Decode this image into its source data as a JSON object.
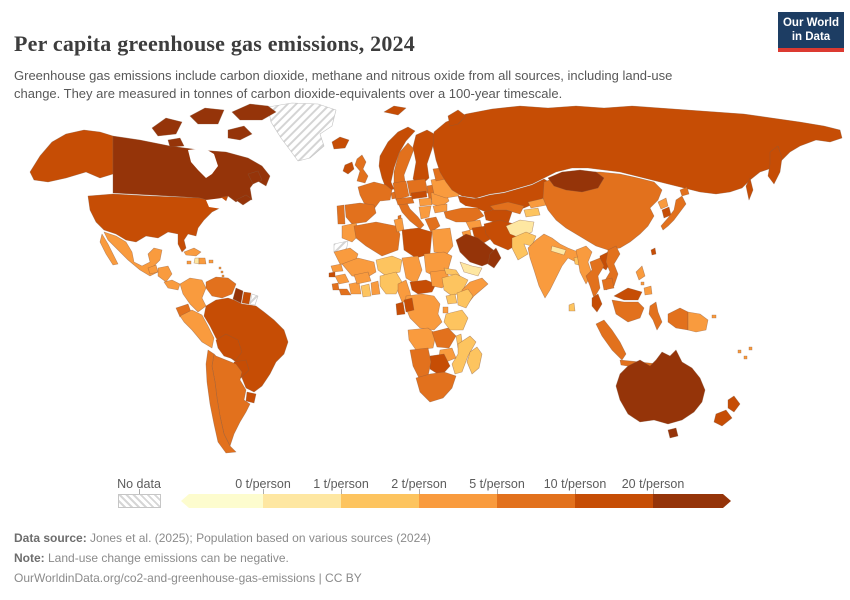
{
  "header": {
    "title": "Per capita greenhouse gas emissions, 2024",
    "subtitle": "Greenhouse gas emissions include carbon dioxide, methane and nitrous oxide from all sources, including land-use change. They are measured in tonnes of carbon dioxide-equivalents over a 100-year timescale."
  },
  "logo": {
    "line1": "Our World",
    "line2": "in Data"
  },
  "footer": {
    "source_label": "Data source:",
    "source_text": " Jones et al. (2025); Population based on various sources (2024)",
    "note_label": "Note:",
    "note_text": " Land-use change emissions can be negative.",
    "url_text": "OurWorldinData.org/co2-and-greenhouse-gas-emissions | CC BY"
  },
  "chart_data": {
    "type": "choropleth_map",
    "title": "Per capita greenhouse gas emissions, 2024",
    "unit": "tonnes of CO2-equivalents per person",
    "year": 2024,
    "legend_position": "bottom",
    "no_data_label": "No data",
    "threshold_labels": [
      "0 t/person",
      "1 t/person",
      "2 t/person",
      "5 t/person",
      "10 t/person",
      "20 t/person"
    ],
    "bins": [
      "below 0",
      "0-1",
      "1-2",
      "2-5",
      "5-10",
      "10-20",
      "above 20"
    ],
    "colors": [
      "#fdfcce",
      "#fee7a2",
      "#fdc45f",
      "#f99b3e",
      "#e2711d",
      "#c64d05",
      "#953409"
    ],
    "no_data_color_pattern": "gray-diagonal-hatch",
    "countries": {
      "Greenland": "no data",
      "Western Sahara": "no data",
      "French Guiana": "no data",
      "Canada": "above 20",
      "United States": "10-20",
      "Mexico": "2-5",
      "Guatemala": "2-5",
      "Honduras": "2-5",
      "Panama": "2-5",
      "Cuba": "2-5",
      "Jamaica": "2-5",
      "Haiti": "0-1",
      "Dominican Republic": "2-5",
      "Puerto Rico": "2-5",
      "Lesser Antilles": "2-5",
      "Colombia": "2-5",
      "Venezuela": "5-10",
      "Guyana": "above 20",
      "Suriname": "10-20",
      "Ecuador": "5-10",
      "Peru": "2-5",
      "Brazil": "10-20",
      "Bolivia": "10-20",
      "Paraguay": "10-20",
      "Uruguay": "10-20",
      "Chile": "5-10",
      "Argentina": "5-10",
      "Iceland": "10-20",
      "Ireland": "10-20",
      "United Kingdom": "5-10",
      "Norway": "10-20",
      "Sweden": "5-10",
      "Finland": "10-20",
      "Denmark": "5-10",
      "Baltic states": "5-10",
      "Poland": "5-10",
      "Germany": "5-10",
      "France": "5-10",
      "Portugal": "5-10",
      "Spain": "5-10",
      "Italy": "5-10",
      "Austria": "5-10",
      "Czechia": "10-20",
      "Hungary": "2-5",
      "Romania": "2-5",
      "Balkans": "2-5",
      "Greece": "5-10",
      "Bulgaria": "2-5",
      "Ukraine": "2-5",
      "Belarus": "5-10",
      "Russia": "10-20",
      "Caucasus": "5-10",
      "Turkey": "5-10",
      "Syria": "2-5",
      "Jordan": "2-5",
      "Iraq": "10-20",
      "Iran": "10-20",
      "Saudi Arabia": "above 20",
      "Yemen": "0-1",
      "Oman": "above 20",
      "Kazakhstan": "10-20",
      "Turkmenistan": "10-20",
      "Uzbekistan": "5-10",
      "Kyrgyzstan": "2-5",
      "Tajikistan": "1-2",
      "Afghanistan": "0-1",
      "Pakistan": "1-2",
      "India": "2-5",
      "Nepal": "0-1",
      "Bangladesh": "1-2",
      "Sri Lanka": "1-2",
      "China": "5-10",
      "Mongolia": "above 20",
      "North Korea": "2-5",
      "South Korea": "10-20",
      "Japan": "5-10",
      "Taiwan": "10-20",
      "Myanmar": "2-5",
      "Thailand": "5-10",
      "Laos": "10-20",
      "Vietnam": "5-10",
      "Cambodia": "5-10",
      "Malaysia": "10-20",
      "Indonesia": "5-10",
      "Philippines": "2-5",
      "Papua New Guinea": "2-5",
      "Australia": "above 20",
      "New Zealand": "10-20",
      "Fiji": "2-5",
      "Morocco": "2-5",
      "Algeria": "5-10",
      "Tunisia": "2-5",
      "Libya": "10-20",
      "Egypt": "2-5",
      "Mauritania": "2-5",
      "Mali": "2-5",
      "Niger": "1-2",
      "Chad": "2-5",
      "Sudan": "2-5",
      "Senegal": "2-5",
      "Guinea-Bissau": "10-20",
      "Guinea": "2-5",
      "Sierra Leone": "5-10",
      "Liberia": "5-10",
      "Ivory Coast": "2-5",
      "Ghana": "1-2",
      "Benin": "2-5",
      "Burkina Faso": "2-5",
      "Nigeria": "1-2",
      "Cameroon": "2-5",
      "Central African Republic": "10-20",
      "South Sudan": "2-5",
      "Eritrea": "1-2",
      "Ethiopia": "1-2",
      "Somalia": "2-5",
      "Uganda": "1-2",
      "Kenya": "1-2",
      "DR Congo": "2-5",
      "Gabon": "10-20",
      "Congo": "10-20",
      "Rwanda": "2-5",
      "Tanzania": "1-2",
      "Angola": "2-5",
      "Zambia": "5-10",
      "Malawi": "1-2",
      "Mozambique": "1-2",
      "Zimbabwe": "2-5",
      "Botswana": "10-20",
      "Namibia": "5-10",
      "South Africa": "5-10",
      "Madagascar": "1-2"
    }
  }
}
